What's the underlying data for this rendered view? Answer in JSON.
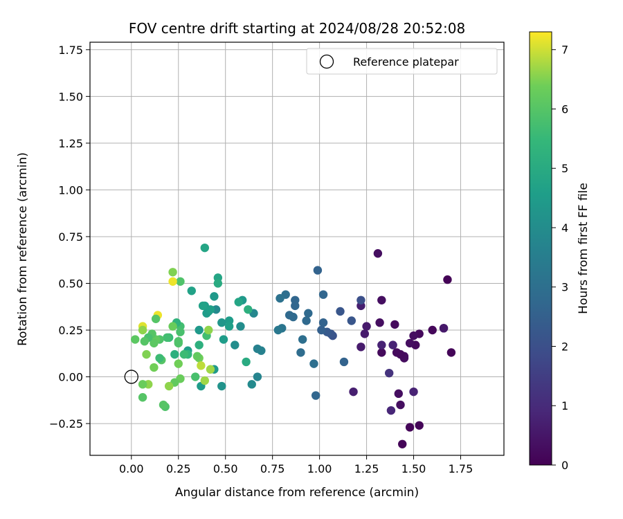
{
  "chart_data": {
    "type": "scatter",
    "title": "FOV centre drift starting at 2024/08/28 20:52:08",
    "xlabel": "Angular distance from reference (arcmin)",
    "ylabel": "Rotation from reference (arcmin)",
    "xlim": [
      -0.22,
      1.98
    ],
    "ylim": [
      -0.42,
      1.79
    ],
    "xticks": [
      "0.00",
      "0.25",
      "0.50",
      "0.75",
      "1.00",
      "1.25",
      "1.50",
      "1.75"
    ],
    "xtick_values": [
      0,
      0.25,
      0.5,
      0.75,
      1.0,
      1.25,
      1.5,
      1.75
    ],
    "yticks": [
      "−0.25",
      "0.00",
      "0.25",
      "0.50",
      "0.75",
      "1.00",
      "1.25",
      "1.50",
      "1.75"
    ],
    "ytick_values": [
      -0.25,
      0,
      0.25,
      0.5,
      0.75,
      1.0,
      1.25,
      1.5,
      1.75
    ],
    "grid": true,
    "legend": {
      "position": "top-right",
      "entries": [
        {
          "label": "Reference platepar",
          "marker": "open-circle"
        }
      ]
    },
    "reference_point": {
      "x": 0.0,
      "y": 0.0
    },
    "colorbar": {
      "label": "Hours from first FF file",
      "range": [
        0,
        7.3
      ],
      "ticks": [
        "0",
        "1",
        "2",
        "3",
        "4",
        "5",
        "6",
        "7"
      ],
      "tick_values": [
        0,
        1,
        2,
        3,
        4,
        5,
        6,
        7
      ],
      "colormap": "viridis"
    },
    "points": [
      {
        "x": 1.68,
        "y": 0.52,
        "t": 0.05
      },
      {
        "x": 1.7,
        "y": 0.13,
        "t": 0.1
      },
      {
        "x": 1.6,
        "y": 0.25,
        "t": 0.15
      },
      {
        "x": 1.66,
        "y": 0.26,
        "t": 0.5
      },
      {
        "x": 1.66,
        "y": 0.26,
        "t": 0.55
      },
      {
        "x": 1.53,
        "y": -0.26,
        "t": 0.1
      },
      {
        "x": 1.48,
        "y": -0.27,
        "t": 0.1
      },
      {
        "x": 1.44,
        "y": -0.36,
        "t": 0.1
      },
      {
        "x": 1.51,
        "y": 0.17,
        "t": 0.2
      },
      {
        "x": 1.53,
        "y": 0.23,
        "t": 0.2
      },
      {
        "x": 1.5,
        "y": 0.22,
        "t": 0.3
      },
      {
        "x": 1.48,
        "y": 0.18,
        "t": 0.3
      },
      {
        "x": 1.45,
        "y": 0.1,
        "t": 0.25
      },
      {
        "x": 1.45,
        "y": 0.11,
        "t": 0.25
      },
      {
        "x": 1.43,
        "y": 0.12,
        "t": 0.2
      },
      {
        "x": 1.41,
        "y": 0.13,
        "t": 0.2
      },
      {
        "x": 1.4,
        "y": 0.28,
        "t": 0.2
      },
      {
        "x": 1.42,
        "y": -0.09,
        "t": 0.3
      },
      {
        "x": 1.43,
        "y": -0.15,
        "t": 0.3
      },
      {
        "x": 1.5,
        "y": -0.08,
        "t": 0.8
      },
      {
        "x": 1.33,
        "y": 0.13,
        "t": 0.2
      },
      {
        "x": 1.32,
        "y": 0.29,
        "t": 0.3
      },
      {
        "x": 1.33,
        "y": 0.41,
        "t": 0.3
      },
      {
        "x": 1.31,
        "y": 0.66,
        "t": 0.3
      },
      {
        "x": 1.33,
        "y": 0.17,
        "t": 0.8
      },
      {
        "x": 1.39,
        "y": 0.17,
        "t": 0.8
      },
      {
        "x": 1.38,
        "y": -0.18,
        "t": 0.9
      },
      {
        "x": 1.37,
        "y": 0.02,
        "t": 1.2
      },
      {
        "x": 1.25,
        "y": 0.27,
        "t": 0.6
      },
      {
        "x": 1.24,
        "y": 0.23,
        "t": 0.6
      },
      {
        "x": 1.22,
        "y": 0.16,
        "t": 0.6
      },
      {
        "x": 1.22,
        "y": 0.38,
        "t": 0.7
      },
      {
        "x": 1.18,
        "y": -0.08,
        "t": 0.7
      },
      {
        "x": 1.22,
        "y": 0.41,
        "t": 2.0
      },
      {
        "x": 1.17,
        "y": 0.3,
        "t": 2.2
      },
      {
        "x": 1.11,
        "y": 0.35,
        "t": 2.2
      },
      {
        "x": 1.13,
        "y": 0.08,
        "t": 2.6
      },
      {
        "x": 1.07,
        "y": 0.22,
        "t": 2.1
      },
      {
        "x": 1.06,
        "y": 0.23,
        "t": 2.2
      },
      {
        "x": 1.04,
        "y": 0.24,
        "t": 2.3
      },
      {
        "x": 1.01,
        "y": 0.25,
        "t": 2.5
      },
      {
        "x": 1.02,
        "y": 0.29,
        "t": 2.6
      },
      {
        "x": 1.02,
        "y": 0.44,
        "t": 2.7
      },
      {
        "x": 0.99,
        "y": 0.57,
        "t": 2.6
      },
      {
        "x": 0.98,
        "y": -0.1,
        "t": 2.7
      },
      {
        "x": 0.97,
        "y": 0.07,
        "t": 3.0
      },
      {
        "x": 0.94,
        "y": 0.34,
        "t": 2.8
      },
      {
        "x": 0.93,
        "y": 0.3,
        "t": 2.8
      },
      {
        "x": 0.91,
        "y": 0.2,
        "t": 3.0
      },
      {
        "x": 0.9,
        "y": 0.13,
        "t": 2.9
      },
      {
        "x": 0.87,
        "y": 0.38,
        "t": 2.7
      },
      {
        "x": 0.87,
        "y": 0.41,
        "t": 2.7
      },
      {
        "x": 0.86,
        "y": 0.32,
        "t": 2.8
      },
      {
        "x": 0.84,
        "y": 0.33,
        "t": 2.8
      },
      {
        "x": 0.82,
        "y": 0.44,
        "t": 3.0
      },
      {
        "x": 0.79,
        "y": 0.42,
        "t": 3.1
      },
      {
        "x": 0.8,
        "y": 0.26,
        "t": 3.2
      },
      {
        "x": 0.78,
        "y": 0.25,
        "t": 3.3
      },
      {
        "x": 0.69,
        "y": 0.14,
        "t": 3.6
      },
      {
        "x": 0.67,
        "y": 0.15,
        "t": 3.6
      },
      {
        "x": 0.67,
        "y": 0.0,
        "t": 3.7
      },
      {
        "x": 0.65,
        "y": 0.34,
        "t": 3.8
      },
      {
        "x": 0.64,
        "y": -0.04,
        "t": 3.9
      },
      {
        "x": 0.58,
        "y": 0.27,
        "t": 4.0
      },
      {
        "x": 0.59,
        "y": 0.41,
        "t": 4.4
      },
      {
        "x": 0.57,
        "y": 0.4,
        "t": 4.8
      },
      {
        "x": 0.62,
        "y": 0.36,
        "t": 5.2
      },
      {
        "x": 0.61,
        "y": 0.08,
        "t": 5.0
      },
      {
        "x": 0.55,
        "y": 0.17,
        "t": 4.0
      },
      {
        "x": 0.52,
        "y": 0.3,
        "t": 4.5
      },
      {
        "x": 0.52,
        "y": 0.27,
        "t": 4.6
      },
      {
        "x": 0.49,
        "y": 0.2,
        "t": 4.5
      },
      {
        "x": 0.48,
        "y": 0.29,
        "t": 4.3
      },
      {
        "x": 0.48,
        "y": -0.05,
        "t": 4.2
      },
      {
        "x": 0.46,
        "y": 0.53,
        "t": 4.8
      },
      {
        "x": 0.46,
        "y": 0.5,
        "t": 5.0
      },
      {
        "x": 0.45,
        "y": 0.36,
        "t": 3.9
      },
      {
        "x": 0.44,
        "y": 0.43,
        "t": 4.4
      },
      {
        "x": 0.44,
        "y": 0.04,
        "t": 4.4
      },
      {
        "x": 0.41,
        "y": 0.35,
        "t": 4.3
      },
      {
        "x": 0.4,
        "y": 0.34,
        "t": 4.5
      },
      {
        "x": 0.39,
        "y": 0.38,
        "t": 4.5
      },
      {
        "x": 0.39,
        "y": 0.69,
        "t": 4.8
      },
      {
        "x": 0.42,
        "y": 0.36,
        "t": 4.6
      },
      {
        "x": 0.38,
        "y": 0.38,
        "t": 4.7
      },
      {
        "x": 0.36,
        "y": 0.25,
        "t": 4.4
      },
      {
        "x": 0.37,
        "y": -0.05,
        "t": 4.5
      },
      {
        "x": 0.32,
        "y": 0.46,
        "t": 4.7
      },
      {
        "x": 0.3,
        "y": 0.14,
        "t": 4.6
      },
      {
        "x": 0.36,
        "y": 0.17,
        "t": 5.2
      },
      {
        "x": 0.4,
        "y": 0.22,
        "t": 5.7
      },
      {
        "x": 0.41,
        "y": 0.25,
        "t": 6.6
      },
      {
        "x": 0.39,
        "y": -0.02,
        "t": 6.7
      },
      {
        "x": 0.42,
        "y": 0.04,
        "t": 6.7
      },
      {
        "x": 0.36,
        "y": 0.1,
        "t": 6.4
      },
      {
        "x": 0.37,
        "y": 0.06,
        "t": 6.9
      },
      {
        "x": 0.34,
        "y": 0.0,
        "t": 5.8
      },
      {
        "x": 0.35,
        "y": 0.11,
        "t": 6.2
      },
      {
        "x": 0.3,
        "y": 0.12,
        "t": 5.4
      },
      {
        "x": 0.28,
        "y": 0.12,
        "t": 5.6
      },
      {
        "x": 0.26,
        "y": 0.51,
        "t": 5.9
      },
      {
        "x": 0.26,
        "y": 0.27,
        "t": 5.7
      },
      {
        "x": 0.26,
        "y": 0.24,
        "t": 5.8
      },
      {
        "x": 0.25,
        "y": 0.19,
        "t": 5.9
      },
      {
        "x": 0.25,
        "y": 0.18,
        "t": 5.9
      },
      {
        "x": 0.24,
        "y": 0.29,
        "t": 5.3
      },
      {
        "x": 0.23,
        "y": 0.12,
        "t": 5.2
      },
      {
        "x": 0.22,
        "y": 0.56,
        "t": 6.5
      },
      {
        "x": 0.22,
        "y": 0.51,
        "t": 7.2
      },
      {
        "x": 0.22,
        "y": 0.27,
        "t": 6.3
      },
      {
        "x": 0.25,
        "y": 0.07,
        "t": 6.4
      },
      {
        "x": 0.26,
        "y": -0.01,
        "t": 6.3
      },
      {
        "x": 0.23,
        "y": -0.03,
        "t": 6.2
      },
      {
        "x": 0.2,
        "y": 0.21,
        "t": 5.5
      },
      {
        "x": 0.19,
        "y": 0.21,
        "t": 5.7
      },
      {
        "x": 0.2,
        "y": -0.05,
        "t": 6.6
      },
      {
        "x": 0.18,
        "y": -0.16,
        "t": 5.9
      },
      {
        "x": 0.17,
        "y": -0.15,
        "t": 6.0
      },
      {
        "x": 0.16,
        "y": 0.09,
        "t": 6.0
      },
      {
        "x": 0.15,
        "y": 0.1,
        "t": 5.6
      },
      {
        "x": 0.15,
        "y": 0.2,
        "t": 5.9
      },
      {
        "x": 0.14,
        "y": 0.33,
        "t": 7.2
      },
      {
        "x": 0.13,
        "y": 0.31,
        "t": 6.0
      },
      {
        "x": 0.13,
        "y": 0.2,
        "t": 6.2
      },
      {
        "x": 0.12,
        "y": 0.18,
        "t": 6.1
      },
      {
        "x": 0.12,
        "y": 0.05,
        "t": 6.4
      },
      {
        "x": 0.11,
        "y": 0.23,
        "t": 6.0
      },
      {
        "x": 0.09,
        "y": 0.21,
        "t": 5.8
      },
      {
        "x": 0.09,
        "y": -0.04,
        "t": 6.6
      },
      {
        "x": 0.08,
        "y": 0.12,
        "t": 6.5
      },
      {
        "x": 0.07,
        "y": 0.19,
        "t": 6.0
      },
      {
        "x": 0.06,
        "y": 0.27,
        "t": 7.1
      },
      {
        "x": 0.06,
        "y": 0.25,
        "t": 6.6
      },
      {
        "x": 0.06,
        "y": -0.04,
        "t": 6.3
      },
      {
        "x": 0.06,
        "y": -0.11,
        "t": 6.0
      },
      {
        "x": 0.02,
        "y": 0.2,
        "t": 6.1
      }
    ]
  }
}
